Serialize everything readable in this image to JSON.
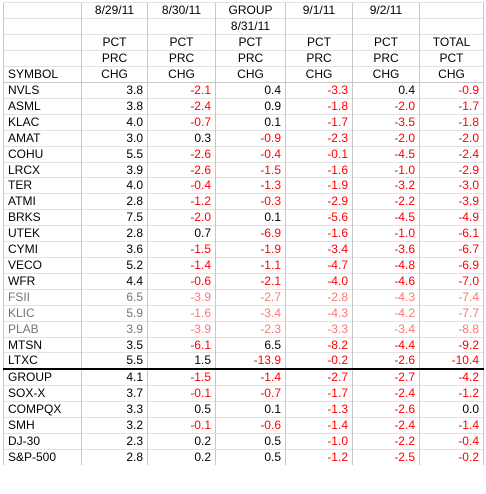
{
  "headers": {
    "row1": [
      "",
      "8/29/11",
      "8/30/11",
      "GROUP",
      "9/1/11",
      "9/2/11",
      ""
    ],
    "row1b": [
      "",
      "",
      "",
      "8/31/11",
      "",
      "",
      ""
    ],
    "row2": [
      "",
      "PCT",
      "PCT",
      "PCT",
      "PCT",
      "PCT",
      "TOTAL"
    ],
    "row3": [
      "",
      "PRC",
      "PRC",
      "PRC",
      "PRC",
      "PRC",
      "PCT"
    ],
    "row4": [
      "SYMBOL",
      "CHG",
      "CHG",
      "CHG",
      "CHG",
      "CHG",
      "CHG"
    ]
  },
  "rows": [
    {
      "symbol": "NVLS",
      "values": [
        "3.8",
        "-2.1",
        "0.4",
        "-3.3",
        "0.4",
        "-0.9"
      ]
    },
    {
      "symbol": "ASML",
      "values": [
        "3.8",
        "-2.4",
        "0.9",
        "-1.8",
        "-2.0",
        "-1.7"
      ]
    },
    {
      "symbol": "KLAC",
      "values": [
        "4.0",
        "-0.7",
        "0.1",
        "-1.7",
        "-3.5",
        "-1.8"
      ]
    },
    {
      "symbol": "AMAT",
      "values": [
        "3.0",
        "0.3",
        "-0.9",
        "-2.3",
        "-2.0",
        "-2.0"
      ]
    },
    {
      "symbol": "COHU",
      "values": [
        "5.5",
        "-2.6",
        "-0.4",
        "-0.1",
        "-4.5",
        "-2.4"
      ]
    },
    {
      "symbol": "LRCX",
      "values": [
        "3.9",
        "-2.6",
        "-1.5",
        "-1.6",
        "-1.0",
        "-2.9"
      ]
    },
    {
      "symbol": "TER",
      "values": [
        "4.0",
        "-0.4",
        "-1.3",
        "-1.9",
        "-3.2",
        "-3.0"
      ]
    },
    {
      "symbol": "ATMI",
      "values": [
        "2.8",
        "-1.2",
        "-0.3",
        "-2.9",
        "-2.2",
        "-3.9"
      ]
    },
    {
      "symbol": "BRKS",
      "values": [
        "7.5",
        "-2.0",
        "0.1",
        "-5.6",
        "-4.5",
        "-4.9"
      ]
    },
    {
      "symbol": "UTEK",
      "values": [
        "2.8",
        "0.7",
        "-6.9",
        "-1.6",
        "-1.0",
        "-6.1"
      ]
    },
    {
      "symbol": "CYMI",
      "values": [
        "3.6",
        "-1.5",
        "-1.9",
        "-3.4",
        "-3.6",
        "-6.7"
      ]
    },
    {
      "symbol": "VECO",
      "values": [
        "5.2",
        "-1.4",
        "-1.1",
        "-4.7",
        "-4.8",
        "-6.9"
      ]
    },
    {
      "symbol": "WFR",
      "values": [
        "4.4",
        "-0.6",
        "-2.1",
        "-4.0",
        "-4.6",
        "-7.0"
      ]
    },
    {
      "symbol": "FSII",
      "values": [
        "6.5",
        "-3.9",
        "-2.7",
        "-2.8",
        "-4.3",
        "-7.4"
      ]
    },
    {
      "symbol": "KLIC",
      "values": [
        "5.9",
        "-1.6",
        "-3.4",
        "-4.3",
        "-4.2",
        "-7.7"
      ]
    },
    {
      "symbol": "PLAB",
      "values": [
        "3.9",
        "-3.9",
        "-2.3",
        "-3.3",
        "-3.4",
        "-8.8"
      ]
    },
    {
      "symbol": "MTSN",
      "values": [
        "3.5",
        "-6.1",
        "6.5",
        "-8.2",
        "-4.4",
        "-9.2"
      ]
    },
    {
      "symbol": "LTXC",
      "values": [
        "5.5",
        "1.5",
        "-13.9",
        "-0.2",
        "-2.6",
        "-10.4"
      ]
    },
    {
      "symbol": "GROUP",
      "values": [
        "4.1",
        "-1.5",
        "-1.4",
        "-2.7",
        "-2.7",
        "-4.2"
      ]
    },
    {
      "symbol": "SOX-X",
      "values": [
        "3.7",
        "-0.1",
        "-0.7",
        "-1.7",
        "-2.4",
        "-1.2"
      ]
    },
    {
      "symbol": "COMPQX",
      "values": [
        "3.3",
        "0.5",
        "0.1",
        "-1.3",
        "-2.6",
        "0.0"
      ]
    },
    {
      "symbol": "SMH",
      "values": [
        "3.2",
        "-0.1",
        "-0.6",
        "-1.4",
        "-2.4",
        "-1.4"
      ]
    },
    {
      "symbol": "DJ-30",
      "values": [
        "2.3",
        "0.2",
        "0.5",
        "-1.0",
        "-2.2",
        "-0.4"
      ]
    },
    {
      "symbol": "S&P-500",
      "values": [
        "2.8",
        "0.2",
        "0.5",
        "-1.2",
        "-2.5",
        "-0.2"
      ]
    }
  ],
  "separator_before_index": 18,
  "faded_rows": [
    13,
    14,
    15
  ],
  "colors": {
    "negative": "#ff0000",
    "positive": "#000000",
    "grid": "#c8c8c8",
    "separator": "#000000"
  }
}
